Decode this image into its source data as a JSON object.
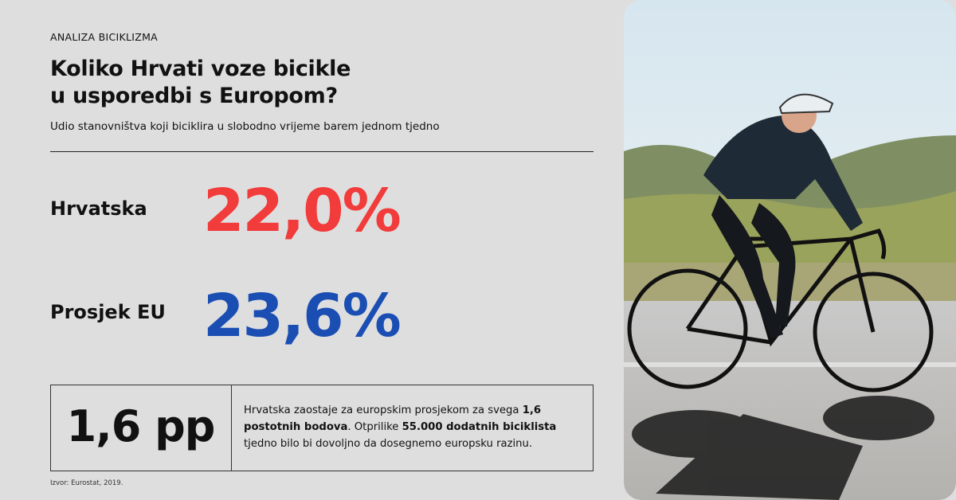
{
  "header": {
    "kicker": "ANALIZA BICIKLIZMA",
    "title": [
      "Koliko Hrvati voze bicikle",
      "u usporedbi s Europom?"
    ],
    "subtitle": "Udio stanovništva koji biciklira u slobodno vrijeme barem jednom tjedno"
  },
  "stats": [
    {
      "label": "Hrvatska",
      "value": "22,0%"
    },
    {
      "label": "Prosjek EU",
      "value": "23,6%"
    }
  ],
  "summary": {
    "difference": "1,6 pp",
    "text": [
      "Hrvatska zaostaje za europskim prosjekom za svega ",
      "1,6 postotnih bodova",
      ". Otprilike ",
      "55.000 dodatnih biciklista",
      " tjedno bilo bi dovoljno da dosegnemo europsku razinu."
    ]
  },
  "footer": {
    "source": "Izvor: Eurostat, 2019."
  }
}
